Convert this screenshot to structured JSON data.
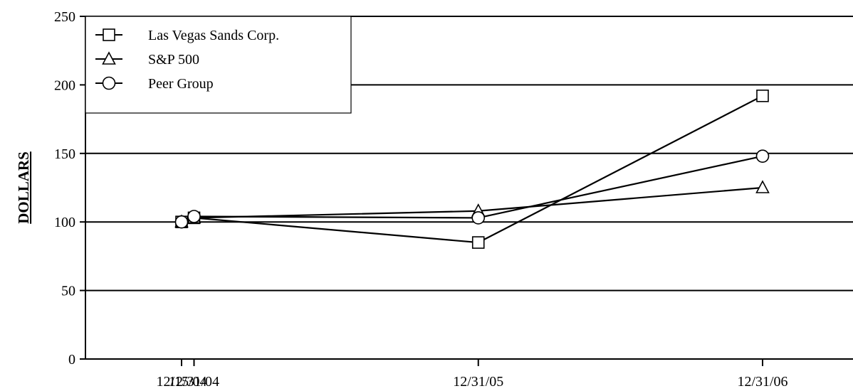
{
  "chart_data": {
    "type": "line",
    "title": "",
    "xlabel": "",
    "ylabel": "DOLLARS",
    "x": [
      "12/15/04",
      "12/31/04",
      "12/31/05",
      "12/31/06"
    ],
    "x_dates": [
      "2004-12-15",
      "2004-12-31",
      "2005-12-31",
      "2006-12-31"
    ],
    "ylim": [
      0,
      250
    ],
    "y_ticks": [
      0,
      50,
      100,
      150,
      200,
      250
    ],
    "grid": true,
    "legend_placement": "top-left",
    "series": [
      {
        "name": "Las Vegas Sands Corp.",
        "marker": "square",
        "values": [
          100,
          103,
          85,
          192
        ]
      },
      {
        "name": "S&P 500",
        "marker": "triangle",
        "values": [
          100,
          103,
          108,
          125
        ]
      },
      {
        "name": "Peer Group",
        "marker": "circle",
        "values": [
          100,
          104,
          103,
          148
        ]
      }
    ],
    "colors": {
      "line": "#000000",
      "marker_fill": "#ffffff",
      "background": "#ffffff"
    }
  }
}
